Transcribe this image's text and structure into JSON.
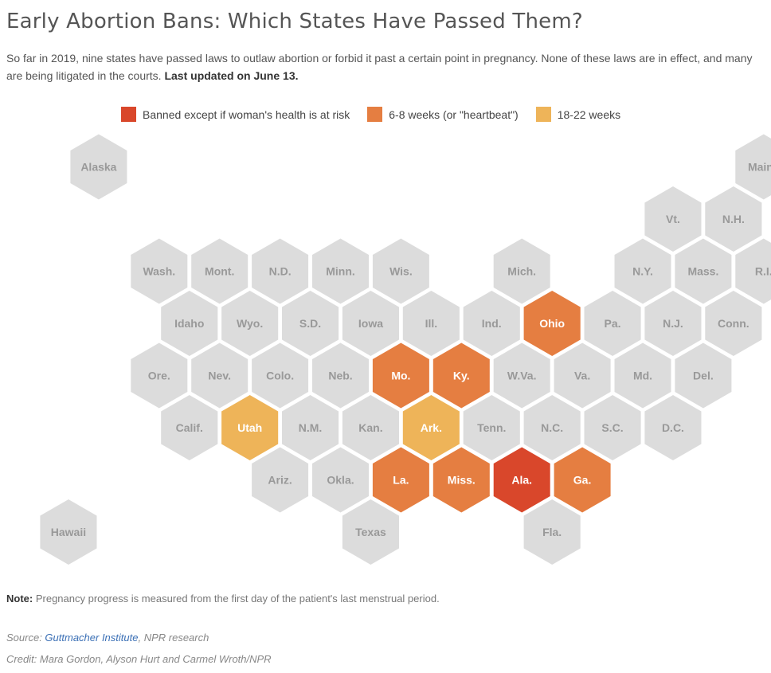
{
  "title": "Early Abortion Bans: Which States Have Passed Them?",
  "intro": {
    "text": "So far in 2019, nine states have passed laws to outlaw abortion or forbid it past a certain point in pregnancy. None of these laws are in effect, and many are being litigated in the courts.",
    "updated": "Last updated on June 13."
  },
  "colors": {
    "banned": "#d9472b",
    "heartbeat": "#e57e41",
    "weeks18_22": "#eeb459",
    "none": "#dcdcdc",
    "label_gray": "#999999",
    "label_white": "#ffffff"
  },
  "legend": [
    {
      "key": "banned",
      "label": "Banned except if woman's health is at risk"
    },
    {
      "key": "heartbeat",
      "label": "6-8 weeks (or \"heartbeat\")"
    },
    {
      "key": "weeks18_22",
      "label": "18-22 weeks"
    }
  ],
  "states": [
    {
      "label": "Alaska",
      "category": "none"
    },
    {
      "label": "Maine",
      "category": "none"
    },
    {
      "label": "Vt.",
      "category": "none"
    },
    {
      "label": "N.H.",
      "category": "none"
    },
    {
      "label": "Wash.",
      "category": "none"
    },
    {
      "label": "Mont.",
      "category": "none"
    },
    {
      "label": "N.D.",
      "category": "none"
    },
    {
      "label": "Minn.",
      "category": "none"
    },
    {
      "label": "Wis.",
      "category": "none"
    },
    {
      "label": "Mich.",
      "category": "none"
    },
    {
      "label": "N.Y.",
      "category": "none"
    },
    {
      "label": "Mass.",
      "category": "none"
    },
    {
      "label": "R.I.",
      "category": "none"
    },
    {
      "label": "Idaho",
      "category": "none"
    },
    {
      "label": "Wyo.",
      "category": "none"
    },
    {
      "label": "S.D.",
      "category": "none"
    },
    {
      "label": "Iowa",
      "category": "none"
    },
    {
      "label": "Ill.",
      "category": "none"
    },
    {
      "label": "Ind.",
      "category": "none"
    },
    {
      "label": "Ohio",
      "category": "heartbeat"
    },
    {
      "label": "Pa.",
      "category": "none"
    },
    {
      "label": "N.J.",
      "category": "none"
    },
    {
      "label": "Conn.",
      "category": "none"
    },
    {
      "label": "Ore.",
      "category": "none"
    },
    {
      "label": "Nev.",
      "category": "none"
    },
    {
      "label": "Colo.",
      "category": "none"
    },
    {
      "label": "Neb.",
      "category": "none"
    },
    {
      "label": "Mo.",
      "category": "heartbeat"
    },
    {
      "label": "Ky.",
      "category": "heartbeat"
    },
    {
      "label": "W.Va.",
      "category": "none"
    },
    {
      "label": "Va.",
      "category": "none"
    },
    {
      "label": "Md.",
      "category": "none"
    },
    {
      "label": "Del.",
      "category": "none"
    },
    {
      "label": "Calif.",
      "category": "none"
    },
    {
      "label": "Utah",
      "category": "weeks18_22"
    },
    {
      "label": "N.M.",
      "category": "none"
    },
    {
      "label": "Kan.",
      "category": "none"
    },
    {
      "label": "Ark.",
      "category": "weeks18_22"
    },
    {
      "label": "Tenn.",
      "category": "none"
    },
    {
      "label": "N.C.",
      "category": "none"
    },
    {
      "label": "S.C.",
      "category": "none"
    },
    {
      "label": "D.C.",
      "category": "none"
    },
    {
      "label": "Ariz.",
      "category": "none"
    },
    {
      "label": "Okla.",
      "category": "none"
    },
    {
      "label": "La.",
      "category": "heartbeat"
    },
    {
      "label": "Miss.",
      "category": "heartbeat"
    },
    {
      "label": "Ala.",
      "category": "banned"
    },
    {
      "label": "Ga.",
      "category": "heartbeat"
    },
    {
      "label": "Hawaii",
      "category": "none"
    },
    {
      "label": "Texas",
      "category": "none"
    },
    {
      "label": "Fla.",
      "category": "none"
    }
  ],
  "note": {
    "label": "Note:",
    "text": "Pregnancy progress is measured from the first day of the patient's last menstrual period."
  },
  "source": {
    "prefix": "Source: ",
    "link": "Guttmacher Institute",
    "suffix": ", NPR research"
  },
  "credit": "Credit: Mara Gordon, Alyson Hurt and Carmel Wroth/NPR"
}
